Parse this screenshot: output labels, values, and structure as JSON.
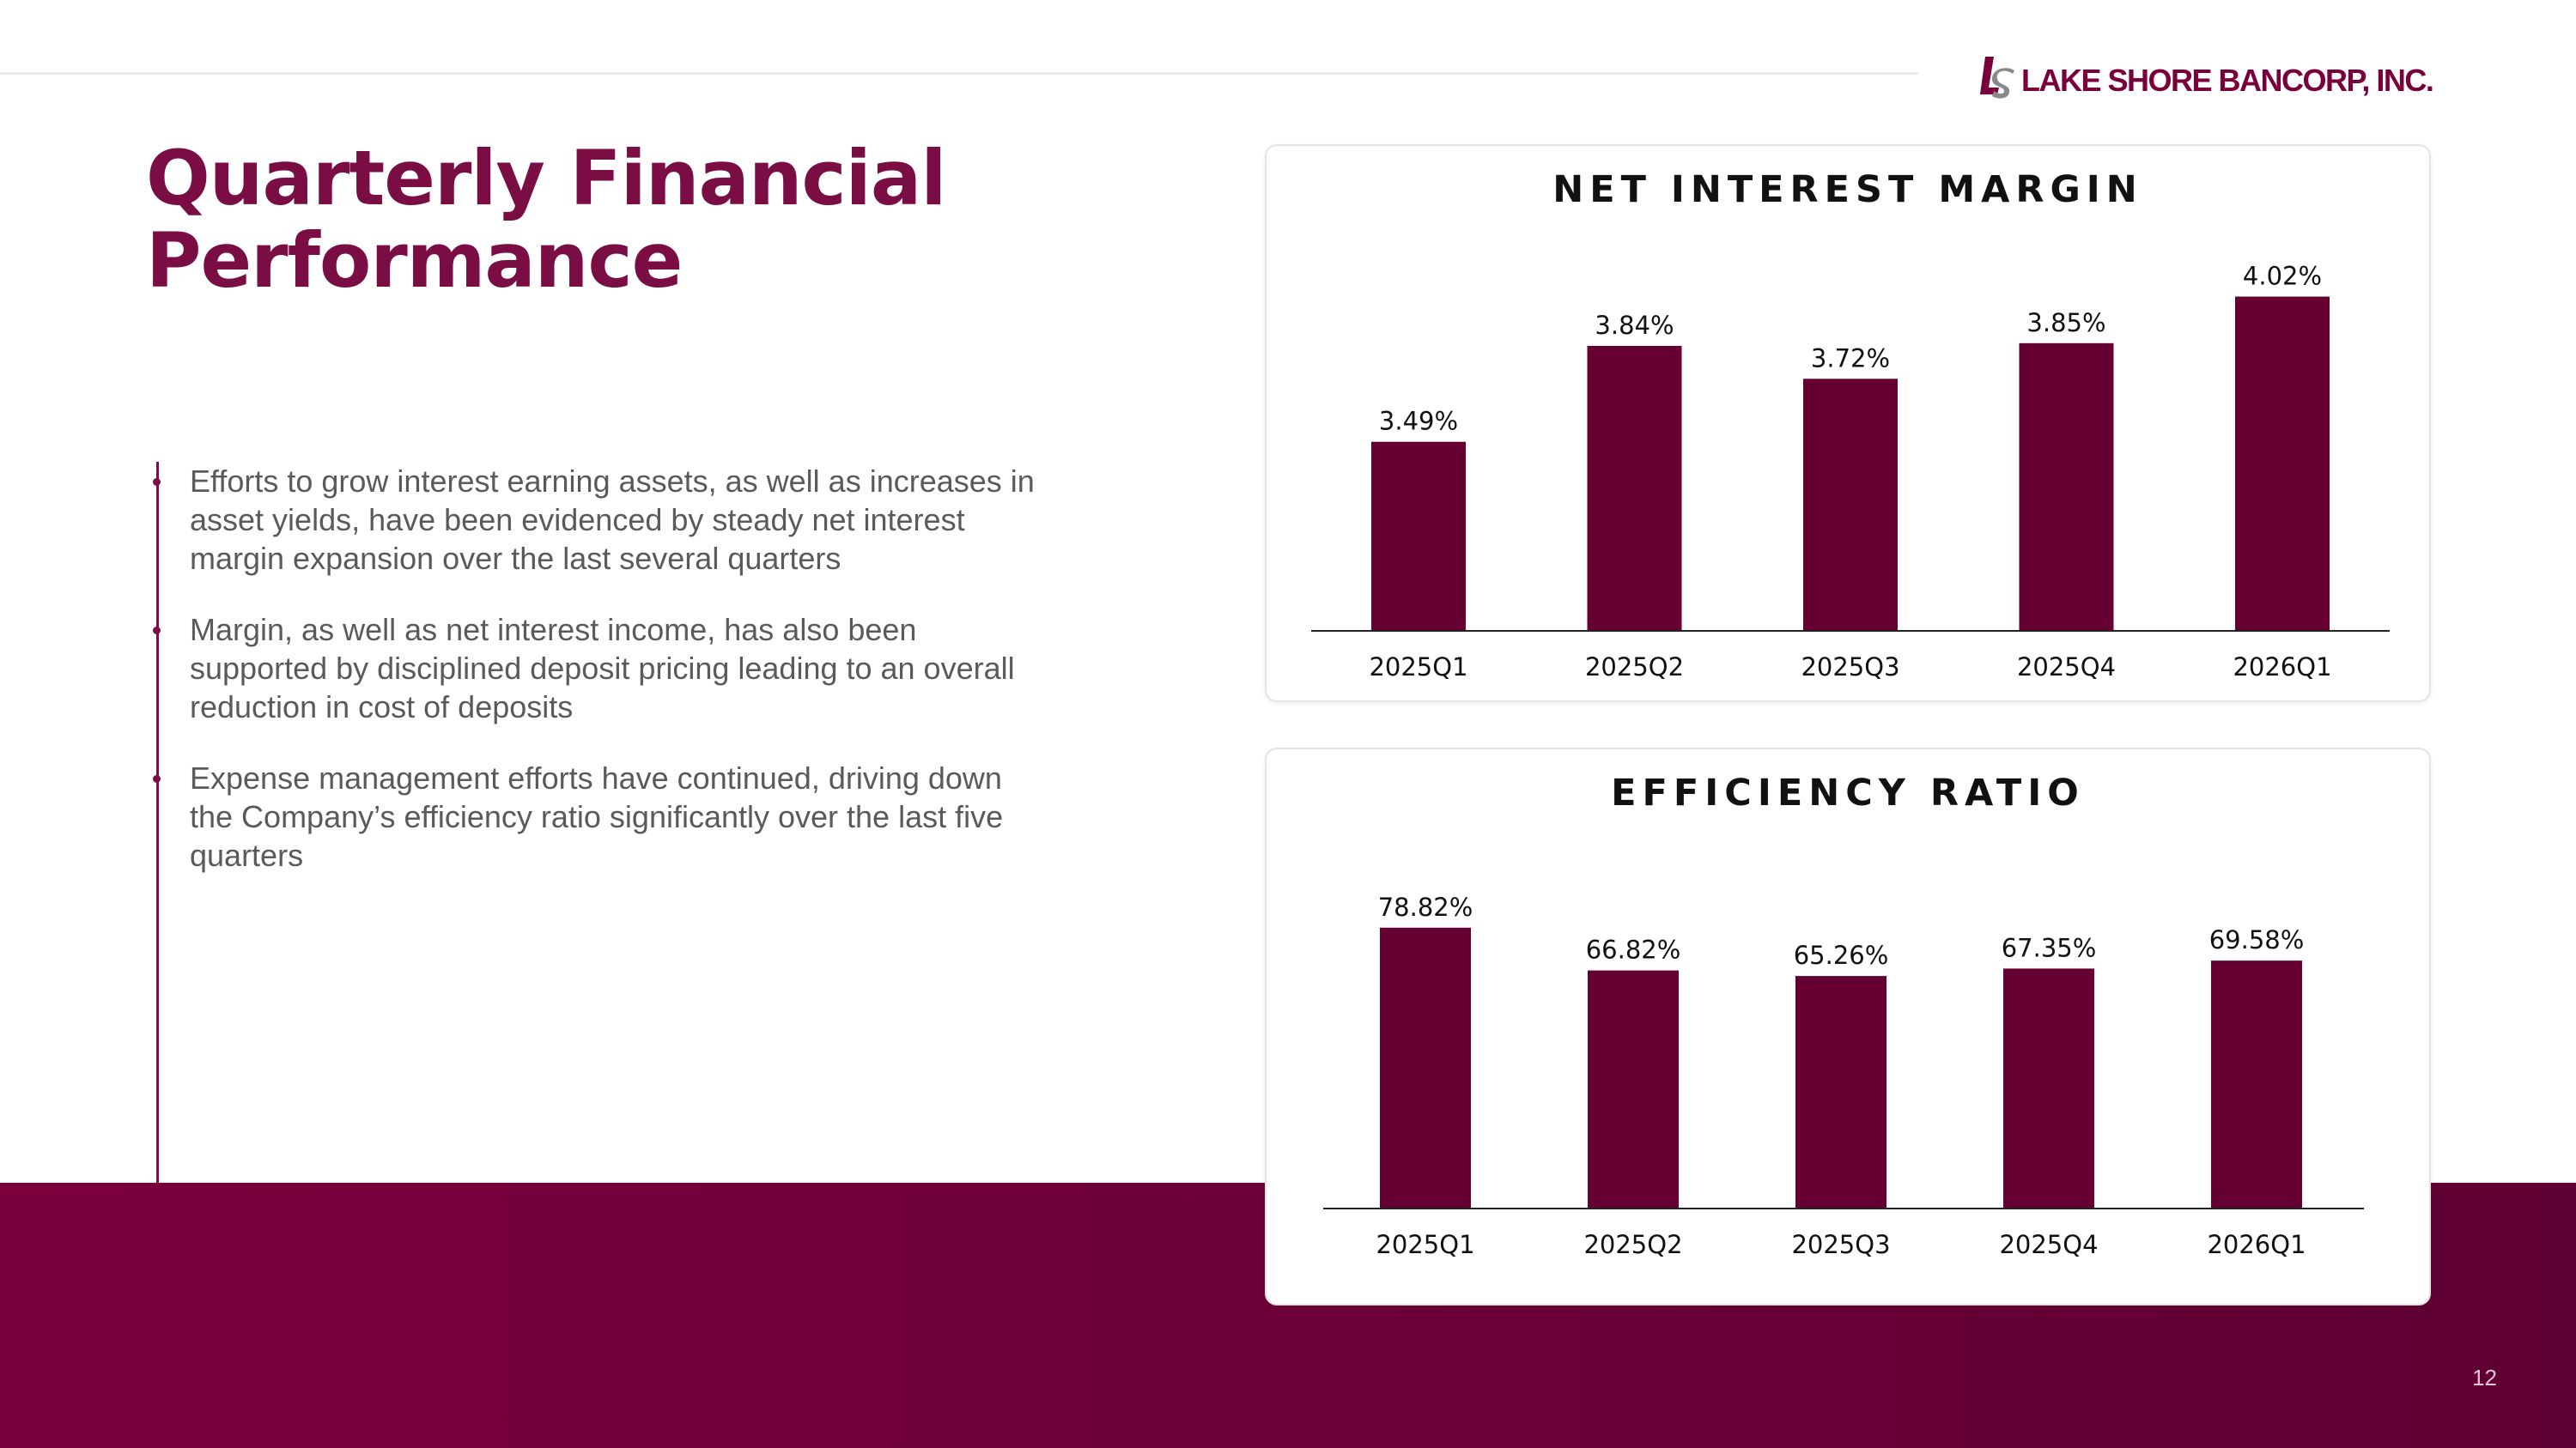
{
  "header": {
    "logo_mark": "LS",
    "logo_text": "LAKE SHORE BANCORP, INC."
  },
  "slide": {
    "title_line1": "Quarterly Financial",
    "title_line2": "Performance",
    "page_number": "12"
  },
  "bullets": [
    "Efforts to grow interest earning assets, as well as increases in asset yields, have been evidenced by steady net interest margin expansion over the last several quarters",
    "Margin, as well as net interest income, has also been supported by disciplined deposit pricing leading to an overall reduction in cost of deposits",
    "Expense management efforts have continued, driving down the Company’s efficiency ratio significantly over the last five quarters"
  ],
  "colors": {
    "brand": "#7a0d44",
    "bar": "#660033",
    "band": "#7a003c"
  },
  "chart_data": [
    {
      "type": "bar",
      "title": "NET INTEREST MARGIN",
      "categories": [
        "2025Q1",
        "2025Q2",
        "2025Q3",
        "2025Q4",
        "2026Q1"
      ],
      "values": [
        3.49,
        3.84,
        3.72,
        3.85,
        4.02
      ],
      "data_labels": [
        "3.49%",
        "3.84%",
        "3.72%",
        "3.85%",
        "4.02%"
      ],
      "ylim": [
        2.8,
        4.1
      ],
      "grid": false,
      "legend": "none"
    },
    {
      "type": "bar",
      "title": "EFFICIENCY RATIO",
      "categories": [
        "2025Q1",
        "2025Q2",
        "2025Q3",
        "2025Q4",
        "2026Q1"
      ],
      "values": [
        78.82,
        66.82,
        65.26,
        67.35,
        69.58
      ],
      "data_labels": [
        "78.82%",
        "66.82%",
        "65.26%",
        "67.35%",
        "69.58%"
      ],
      "ylim": [
        0,
        86
      ],
      "grid": false,
      "legend": "none"
    }
  ]
}
